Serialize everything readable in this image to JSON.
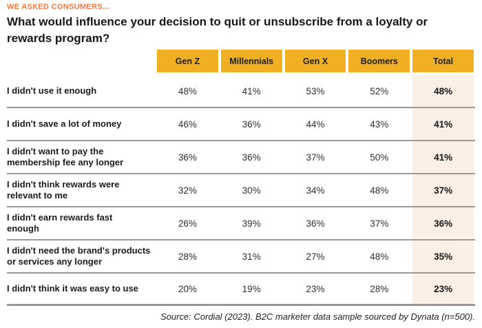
{
  "kicker": "WE ASKED CONSUMERS...",
  "colors": {
    "kicker_orange": "#f4793e",
    "header_yellow": "#f1b024",
    "total_column_bg": "#fbefe6",
    "divider_gray": "#9a9a9a",
    "text_dark": "#1b1b1b"
  },
  "chart_data": {
    "type": "table",
    "title": "What would influence your decision to quit or unsubscribe from a loyalty or rewards program?",
    "columns": [
      "Gen Z",
      "Millennials",
      "Gen X",
      "Boomers",
      "Total"
    ],
    "rows": [
      {
        "label": "I didn't use it enough",
        "values": [
          "48%",
          "41%",
          "53%",
          "52%"
        ],
        "total": "48%"
      },
      {
        "label": "I didn't save a lot of money",
        "values": [
          "46%",
          "36%",
          "44%",
          "43%"
        ],
        "total": "41%"
      },
      {
        "label": "I didn't want to pay the membership fee any longer",
        "values": [
          "36%",
          "36%",
          "37%",
          "50%"
        ],
        "total": "41%"
      },
      {
        "label": "I didn't think rewards were relevant to me",
        "values": [
          "32%",
          "30%",
          "34%",
          "48%"
        ],
        "total": "37%"
      },
      {
        "label": "I didn't earn rewards fast enough",
        "values": [
          "26%",
          "39%",
          "36%",
          "37%"
        ],
        "total": "36%"
      },
      {
        "label": "I didn't need the brand's products or services any longer",
        "values": [
          "28%",
          "31%",
          "27%",
          "48%"
        ],
        "total": "35%"
      },
      {
        "label": "I didn't think it was easy to use",
        "values": [
          "20%",
          "19%",
          "23%",
          "28%"
        ],
        "total": "23%"
      }
    ],
    "source": "Source: Cordial (2023). B2C marketer data sample sourced by Dynata (n=500)."
  }
}
